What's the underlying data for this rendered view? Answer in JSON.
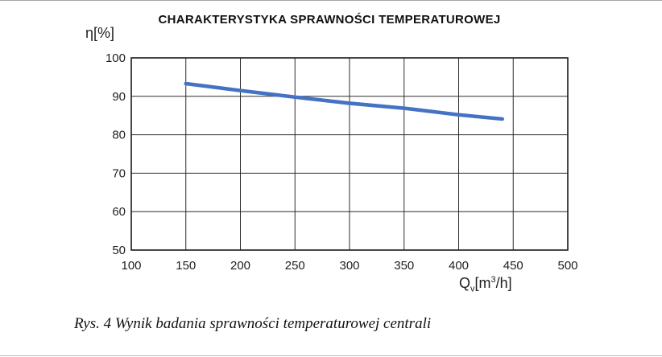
{
  "header": {
    "title": "CHARAKTERYSTYKA SPRAWNOŚCI TEMPERATUROWEJ",
    "y_axis_unit": "η[%]"
  },
  "x_axis_unit": {
    "symbol": "Q",
    "subscript": "v",
    "bracket_open": "[m",
    "superscript": "3",
    "bracket_close": "/h]"
  },
  "caption": "Rys. 4 Wynik badania sprawności temperaturowej centrali",
  "chart_data": {
    "type": "line",
    "title": "CHARAKTERYSTYKA SPRAWNOŚCI TEMPERATUROWEJ",
    "xlabel": "Qv[m³/h]",
    "ylabel": "η[%]",
    "xlim": [
      100,
      500
    ],
    "ylim": [
      50,
      100
    ],
    "x_ticks": [
      100,
      150,
      200,
      250,
      300,
      350,
      400,
      450,
      500
    ],
    "y_ticks": [
      50,
      60,
      70,
      80,
      90,
      100
    ],
    "grid": true,
    "legend": false,
    "line_color": "#4472C4",
    "grid_color": "#2b2b2b",
    "border_color": "#1a1a1a",
    "series": [
      {
        "x": [
          150,
          200,
          250,
          300,
          350,
          400,
          440
        ],
        "y": [
          93.3,
          91.5,
          89.8,
          88.2,
          86.9,
          85.2,
          84.1
        ]
      }
    ]
  }
}
